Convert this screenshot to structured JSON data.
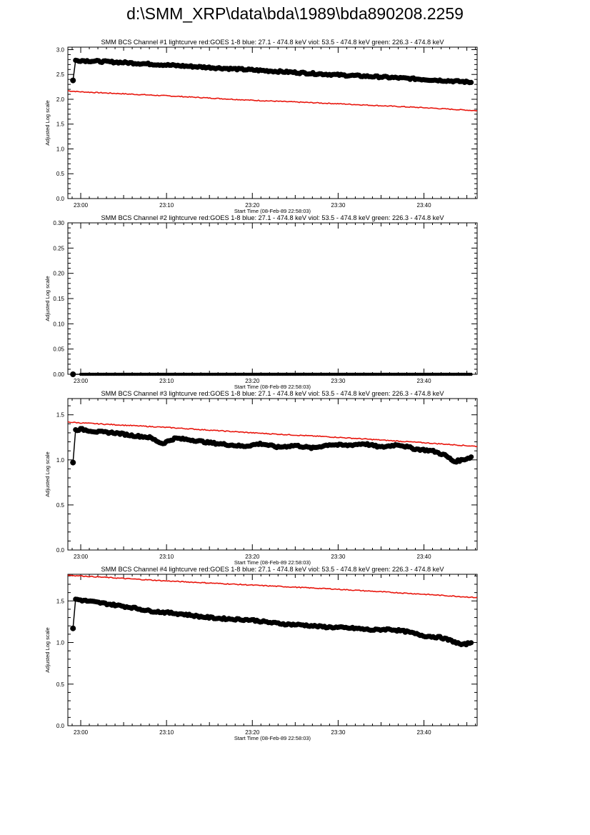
{
  "page_title": "d:\\SMM_XRP\\data\\bda\\1989\\bda890208.2259",
  "colors": {
    "goes": "#e8150c",
    "bcs": "#000000",
    "axis": "#000000"
  },
  "chart_data": [
    {
      "type": "line",
      "title": "SMM BCS Channel #1 lightcurve  red:GOES 1-8  blue: 27.1 - 474.8 keV  viol: 53.5 - 474.8 keV  green: 226.3 - 474.8 keV",
      "xlabel": "Start Time (08-Feb-89 22:58:03)",
      "ylabel": "Adjusted Log scale",
      "x_range_min": [
        -1.5,
        46.2
      ],
      "xticks": [
        0,
        10,
        20,
        30,
        40
      ],
      "xtick_labels": [
        "23:00",
        "23:10",
        "23:20",
        "23:30",
        "23:40"
      ],
      "ylim": [
        0,
        3.05
      ],
      "yticks": [
        0,
        0.5,
        1.0,
        1.5,
        2.0,
        2.5,
        3.0
      ],
      "ytick_labels": [
        "0.0",
        "0.5",
        "1.0",
        "1.5",
        "2.0",
        "2.5",
        "3.0"
      ],
      "series": [
        {
          "key": "goes",
          "x": [
            -1.5,
            0,
            10,
            20,
            30,
            40,
            46.2
          ],
          "y": [
            2.17,
            2.15,
            2.07,
            1.98,
            1.91,
            1.83,
            1.77
          ]
        },
        {
          "key": "bcs",
          "x": [
            -0.9,
            -0.6,
            0,
            5,
            10,
            15,
            20,
            25,
            30,
            35,
            40,
            45,
            45.5
          ],
          "y": [
            2.38,
            2.78,
            2.78,
            2.74,
            2.69,
            2.64,
            2.59,
            2.54,
            2.49,
            2.45,
            2.4,
            2.35,
            2.34
          ]
        }
      ]
    },
    {
      "type": "line",
      "title": "SMM BCS Channel #2 lightcurve  red:GOES 1-8  blue: 27.1 - 474.8 keV  viol: 53.5 - 474.8 keV  green: 226.3 - 474.8 keV",
      "xlabel": "Start Time (08-Feb-89 22:58:03)",
      "ylabel": "Adjusted Log scale",
      "x_range_min": [
        -1.5,
        46.2
      ],
      "xticks": [
        0,
        10,
        20,
        30,
        40
      ],
      "xtick_labels": [
        "23:00",
        "23:10",
        "23:20",
        "23:30",
        "23:40"
      ],
      "ylim": [
        0,
        0.3
      ],
      "yticks": [
        0,
        0.05,
        0.1,
        0.15,
        0.2,
        0.25,
        0.3
      ],
      "ytick_labels": [
        "0.00",
        "0.05",
        "0.10",
        "0.15",
        "0.20",
        "0.25",
        "0.30"
      ],
      "series": [
        {
          "key": "bcs",
          "x": [
            -0.9,
            0,
            10,
            20,
            30,
            40,
            45.5
          ],
          "y": [
            0,
            0,
            0,
            0,
            0,
            0,
            0
          ]
        }
      ]
    },
    {
      "type": "line",
      "title": "SMM BCS Channel #3 lightcurve  red:GOES 1-8  blue: 27.1 - 474.8 keV  viol: 53.5 - 474.8 keV  green: 226.3 - 474.8 keV",
      "xlabel": "Start Time (08-Feb-89 22:58:03)",
      "ylabel": "Adjusted Log scale",
      "x_range_min": [
        -1.5,
        46.2
      ],
      "xticks": [
        0,
        10,
        20,
        30,
        40
      ],
      "xtick_labels": [
        "23:00",
        "23:10",
        "23:20",
        "23:30",
        "23:40"
      ],
      "ylim": [
        0,
        1.68
      ],
      "yticks": [
        0,
        0.5,
        1.0,
        1.5
      ],
      "ytick_labels": [
        "0.0",
        "0.5",
        "1.0",
        "1.5"
      ],
      "series": [
        {
          "key": "goes",
          "x": [
            -1.5,
            0,
            10,
            20,
            30,
            40,
            46.2
          ],
          "y": [
            1.42,
            1.41,
            1.36,
            1.3,
            1.25,
            1.19,
            1.15
          ]
        },
        {
          "key": "bcs",
          "x": [
            -0.9,
            -0.6,
            0,
            2,
            4,
            6,
            8,
            9.5,
            11,
            13,
            15,
            17,
            19,
            21,
            23,
            25,
            27,
            29,
            31,
            33,
            35,
            37,
            39,
            41,
            42.5,
            43.5,
            44.5,
            45.5
          ],
          "y": [
            0.97,
            1.33,
            1.34,
            1.31,
            1.3,
            1.27,
            1.25,
            1.18,
            1.24,
            1.22,
            1.19,
            1.17,
            1.15,
            1.18,
            1.14,
            1.16,
            1.13,
            1.17,
            1.16,
            1.18,
            1.14,
            1.17,
            1.12,
            1.1,
            1.05,
            0.98,
            1.0,
            1.03
          ]
        }
      ]
    },
    {
      "type": "line",
      "title": "SMM BCS Channel #4 lightcurve  red:GOES 1-8  blue: 27.1 - 474.8 keV  viol: 53.5 - 474.8 keV  green: 226.3 - 474.8 keV",
      "xlabel": "Start Time (08-Feb-89 22:58:03)",
      "ylabel": "Adjusted Log scale",
      "x_range_min": [
        -1.5,
        46.2
      ],
      "xticks": [
        0,
        10,
        20,
        30,
        40
      ],
      "xtick_labels": [
        "23:00",
        "23:10",
        "23:20",
        "23:30",
        "23:40"
      ],
      "ylim": [
        0,
        1.82
      ],
      "yticks": [
        0,
        0.5,
        1.0,
        1.5
      ],
      "ytick_labels": [
        "0.0",
        "0.5",
        "1.0",
        "1.5"
      ],
      "series": [
        {
          "key": "goes",
          "x": [
            -1.5,
            0,
            10,
            20,
            30,
            40,
            46.2
          ],
          "y": [
            1.81,
            1.8,
            1.74,
            1.69,
            1.64,
            1.58,
            1.54
          ]
        },
        {
          "key": "bcs",
          "x": [
            -0.9,
            -0.6,
            0,
            2,
            4,
            6,
            8,
            10,
            12,
            14,
            16,
            18,
            20,
            22,
            24,
            26,
            28,
            30,
            32,
            34,
            36,
            38,
            40,
            42,
            43.5,
            44.5,
            45.5
          ],
          "y": [
            1.17,
            1.52,
            1.51,
            1.48,
            1.45,
            1.42,
            1.38,
            1.36,
            1.34,
            1.31,
            1.29,
            1.28,
            1.27,
            1.24,
            1.22,
            1.21,
            1.19,
            1.18,
            1.17,
            1.15,
            1.16,
            1.13,
            1.08,
            1.06,
            1.01,
            0.97,
            1.0
          ]
        }
      ]
    }
  ]
}
